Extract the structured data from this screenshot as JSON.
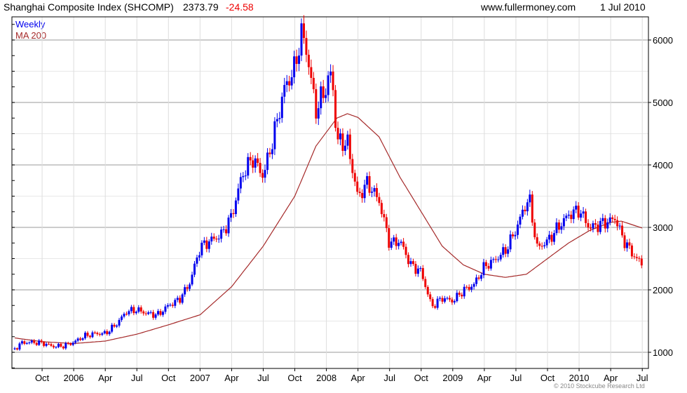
{
  "header": {
    "title": "Shanghai Composite Index (SHCOMP)",
    "last": "2373.79",
    "change": "-24.58",
    "site": "www.fullermoney.com",
    "date": "1 Jul 2010"
  },
  "copyright": "© 2010 Stockcube Research Ltd",
  "colors": {
    "up": "#0000ee",
    "down": "#ee0000",
    "ma": "#a52a2a",
    "grid": "#dddddd",
    "grid_major": "#bbbbbb"
  },
  "chart_data": {
    "type": "candlestick",
    "title": "Shanghai Composite Index (SHCOMP) 2373.79 -24.58",
    "legend": [
      "Weekly",
      "MA 200"
    ],
    "legend_placement": "top-left",
    "ylim": [
      740,
      6370
    ],
    "y_ticks": [
      1000,
      2000,
      3000,
      4000,
      5000,
      6000
    ],
    "x_ticks": [
      {
        "label": "Oct",
        "m": 3
      },
      {
        "label": "2006",
        "m": 6
      },
      {
        "label": "Apr",
        "m": 9
      },
      {
        "label": "Jul",
        "m": 12
      },
      {
        "label": "Oct",
        "m": 15
      },
      {
        "label": "2007",
        "m": 18
      },
      {
        "label": "Apr",
        "m": 21
      },
      {
        "label": "Jul",
        "m": 24
      },
      {
        "label": "Oct",
        "m": 27
      },
      {
        "label": "2008",
        "m": 30
      },
      {
        "label": "Apr",
        "m": 33
      },
      {
        "label": "Jul",
        "m": 36
      },
      {
        "label": "Oct",
        "m": 39
      },
      {
        "label": "2009",
        "m": 42
      },
      {
        "label": "Apr",
        "m": 45
      },
      {
        "label": "Jul",
        "m": 48
      },
      {
        "label": "Oct",
        "m": 51
      },
      {
        "label": "2010",
        "m": 54
      },
      {
        "label": "Apr",
        "m": 57
      },
      {
        "label": "Jul",
        "m": 60
      }
    ],
    "weekly_close_keypoints": [
      [
        0.4,
        1050
      ],
      [
        1,
        1150
      ],
      [
        2,
        1160
      ],
      [
        3,
        1150
      ],
      [
        4,
        1095
      ],
      [
        5,
        1100
      ],
      [
        6,
        1160
      ],
      [
        7,
        1260
      ],
      [
        8,
        1300
      ],
      [
        9,
        1300
      ],
      [
        10,
        1440
      ],
      [
        11,
        1650
      ],
      [
        12,
        1680
      ],
      [
        13,
        1620
      ],
      [
        14,
        1600
      ],
      [
        15,
        1750
      ],
      [
        16,
        1840
      ],
      [
        17,
        2100
      ],
      [
        18,
        2680
      ],
      [
        19,
        2790
      ],
      [
        20,
        2880
      ],
      [
        21,
        3180
      ],
      [
        22,
        3840
      ],
      [
        23,
        4110
      ],
      [
        24,
        3820
      ],
      [
        25,
        4470
      ],
      [
        26,
        5220
      ],
      [
        27,
        5550
      ],
      [
        27.6,
        6100
      ],
      [
        28,
        5950
      ],
      [
        29,
        4870
      ],
      [
        30,
        5260
      ],
      [
        30.5,
        5500
      ],
      [
        31,
        4380
      ],
      [
        32,
        4350
      ],
      [
        33,
        3470
      ],
      [
        33.8,
        3700
      ],
      [
        34,
        3690
      ],
      [
        35,
        3430
      ],
      [
        36,
        2740
      ],
      [
        37,
        2780
      ],
      [
        38,
        2400
      ],
      [
        39,
        2290
      ],
      [
        40,
        1730
      ],
      [
        41,
        1870
      ],
      [
        42,
        1820
      ],
      [
        43,
        1990
      ],
      [
        44,
        2080
      ],
      [
        45,
        2370
      ],
      [
        46,
        2480
      ],
      [
        47,
        2630
      ],
      [
        48,
        2960
      ],
      [
        49,
        3410
      ],
      [
        49.3,
        3420
      ],
      [
        50,
        2670
      ],
      [
        51,
        2780
      ],
      [
        52,
        3000
      ],
      [
        53,
        3200
      ],
      [
        54,
        3280
      ],
      [
        55,
        2990
      ],
      [
        56,
        3050
      ],
      [
        57,
        3110
      ],
      [
        57.5,
        3150
      ],
      [
        58,
        2870
      ],
      [
        59,
        2590
      ],
      [
        60,
        2400
      ],
      [
        60.1,
        2374
      ]
    ],
    "ma200_keypoints": [
      [
        0.4,
        1230
      ],
      [
        3,
        1170
      ],
      [
        6,
        1140
      ],
      [
        9,
        1180
      ],
      [
        12,
        1290
      ],
      [
        15,
        1440
      ],
      [
        18,
        1600
      ],
      [
        21,
        2050
      ],
      [
        24,
        2700
      ],
      [
        27,
        3500
      ],
      [
        29,
        4300
      ],
      [
        31,
        4750
      ],
      [
        32,
        4820
      ],
      [
        33,
        4760
      ],
      [
        35,
        4450
      ],
      [
        37,
        3800
      ],
      [
        39,
        3250
      ],
      [
        41,
        2700
      ],
      [
        43,
        2400
      ],
      [
        45,
        2250
      ],
      [
        47,
        2200
      ],
      [
        49,
        2250
      ],
      [
        51,
        2500
      ],
      [
        53,
        2750
      ],
      [
        55,
        2950
      ],
      [
        57,
        3080
      ],
      [
        58,
        3100
      ],
      [
        60,
        2990
      ]
    ]
  }
}
